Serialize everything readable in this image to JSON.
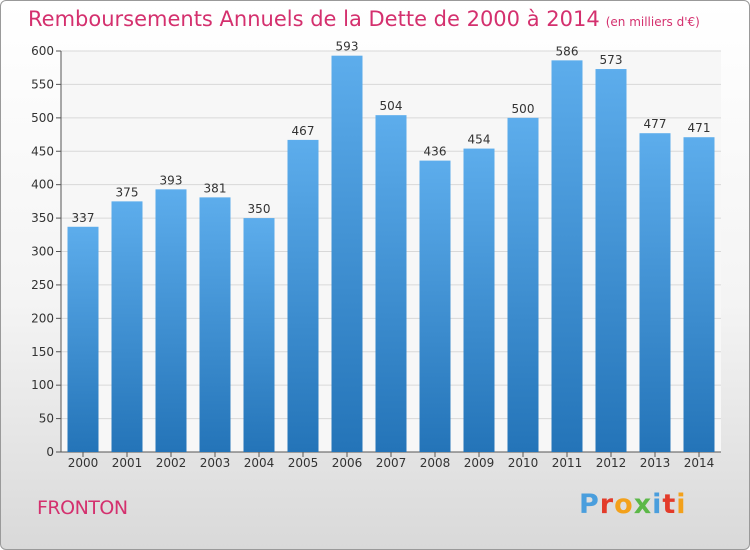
{
  "chart_data": {
    "type": "bar",
    "title": "Remboursements Annuels de la Dette de 2000 à 2014",
    "unit_note": "(en milliers d'€)",
    "categories": [
      "2000",
      "2001",
      "2002",
      "2003",
      "2004",
      "2005",
      "2006",
      "2007",
      "2008",
      "2009",
      "2010",
      "2011",
      "2012",
      "2013",
      "2014"
    ],
    "values": [
      337,
      375,
      393,
      381,
      350,
      467,
      593,
      504,
      436,
      454,
      500,
      586,
      573,
      477,
      471
    ],
    "xlabel": "",
    "ylabel": "",
    "ylim": [
      0,
      600
    ],
    "yticks": [
      0,
      50,
      100,
      150,
      200,
      250,
      300,
      350,
      400,
      450,
      500,
      550,
      600
    ],
    "grid": true,
    "bar_color": "#3d93d8"
  },
  "footer": {
    "town": "FRONTON",
    "brand": "Proxiti",
    "brand_colors": [
      "#4a9edd",
      "#e33b2a",
      "#f3a11b",
      "#5cb848",
      "#4a9edd",
      "#e33b2a",
      "#f3a11b"
    ]
  }
}
